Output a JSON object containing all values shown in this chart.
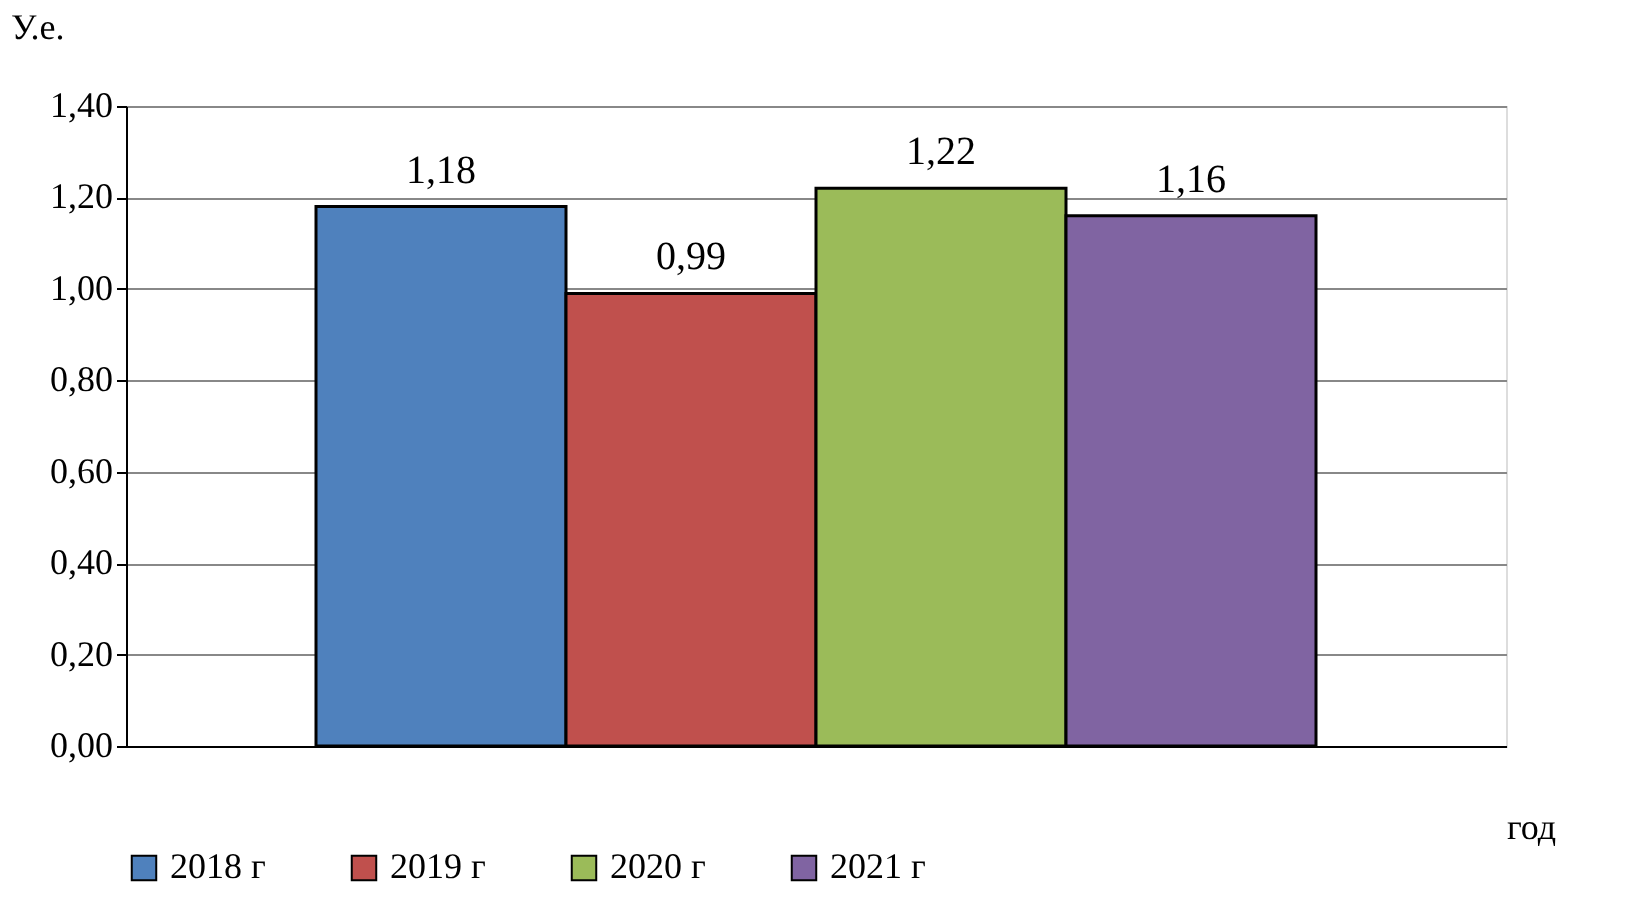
{
  "chart_data": {
    "type": "bar",
    "ylabel": "У.е.",
    "xlabel": "год",
    "categories": [
      null
    ],
    "series": [
      {
        "name": "2018 г",
        "color": "#4f81bd",
        "values": [
          1.18
        ],
        "value_labels": [
          "1,18"
        ]
      },
      {
        "name": "2019 г",
        "color": "#c0504d",
        "values": [
          0.99
        ],
        "value_labels": [
          "0,99"
        ]
      },
      {
        "name": "2020 г",
        "color": "#9bbb59",
        "values": [
          1.22
        ],
        "value_labels": [
          "1,22"
        ]
      },
      {
        "name": "2021 г",
        "color": "#8064a2",
        "values": [
          1.16
        ],
        "value_labels": [
          "1,16"
        ]
      }
    ],
    "ylim": [
      0,
      1.4
    ],
    "yticks": [
      {
        "value": 0,
        "label": "0,00"
      },
      {
        "value": 0.2,
        "label": "0,20"
      },
      {
        "value": 0.4,
        "label": "0,40"
      },
      {
        "value": 0.6,
        "label": "0,60"
      },
      {
        "value": 0.8,
        "label": "0,80"
      },
      {
        "value": 1.0,
        "label": "1,00"
      },
      {
        "value": 1.2,
        "label": "1,20"
      },
      {
        "value": 1.4,
        "label": "1,40"
      }
    ],
    "grid": "y",
    "legend": "bottom"
  }
}
